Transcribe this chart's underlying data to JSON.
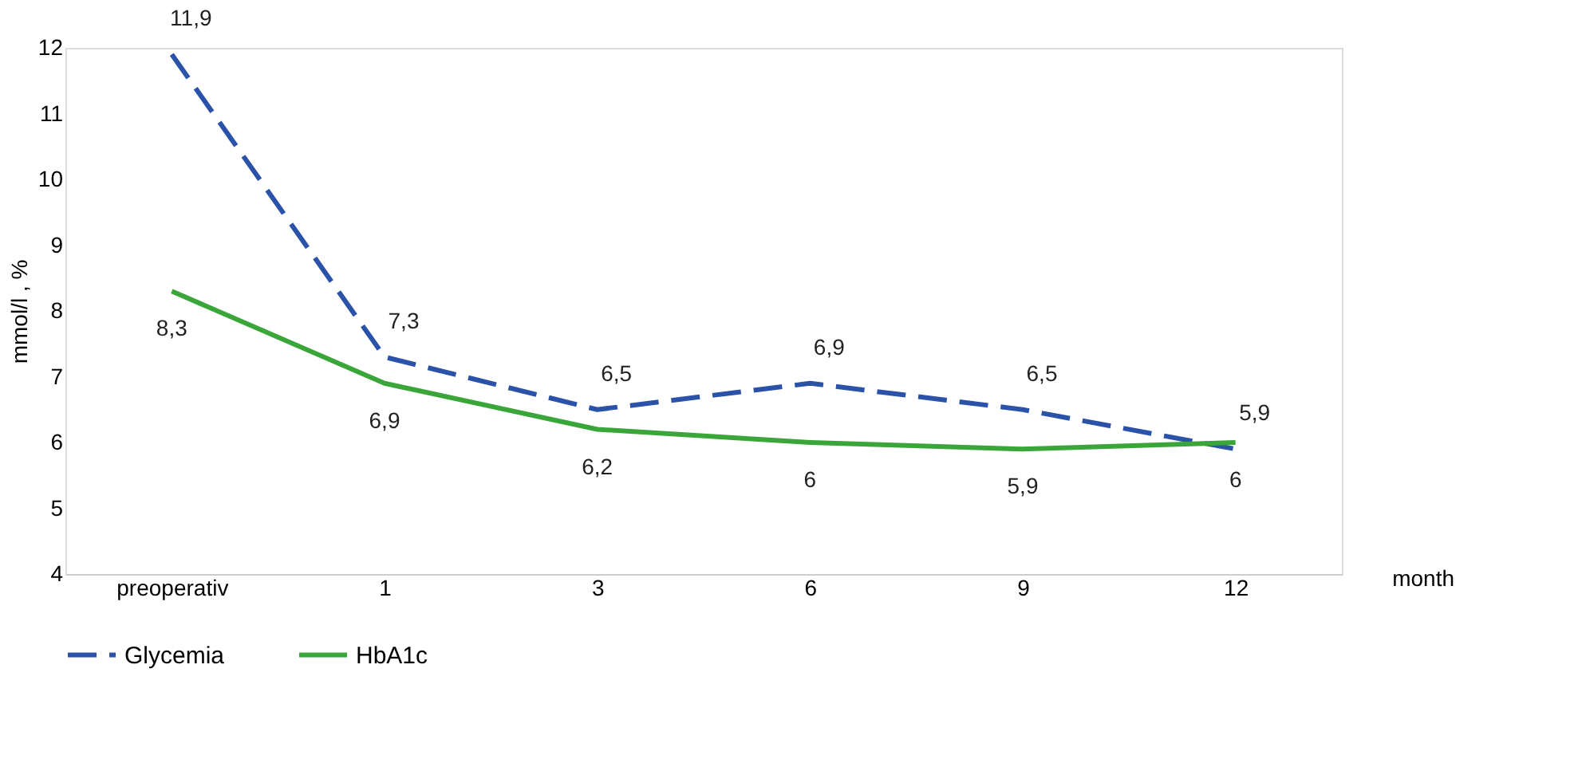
{
  "chart_data": {
    "type": "line",
    "ylabel": "mmol/l , %",
    "xlabel": "month",
    "categories": [
      "preoperativ",
      "1",
      "3",
      "6",
      "9",
      "12"
    ],
    "ylim": [
      4,
      12
    ],
    "yticks": [
      4,
      5,
      6,
      7,
      8,
      9,
      10,
      11,
      12
    ],
    "grid": false,
    "legend": "bottom",
    "marker": "none",
    "series": [
      {
        "name": "Glycemia",
        "color": "#2a52a8",
        "line_style": "dashed",
        "values": [
          11.9,
          7.3,
          6.5,
          6.9,
          6.5,
          5.9
        ],
        "value_labels": [
          "11,9",
          "7,3",
          "6,5",
          "6,9",
          "6,5",
          "5,9"
        ]
      },
      {
        "name": "HbA1c",
        "color": "#3aa63a",
        "line_style": "solid",
        "values": [
          8.3,
          6.9,
          6.2,
          6,
          5.9,
          6
        ],
        "value_labels": [
          "8,3",
          "6,9",
          "6,2",
          "6",
          "5,9",
          "6"
        ]
      }
    ]
  }
}
